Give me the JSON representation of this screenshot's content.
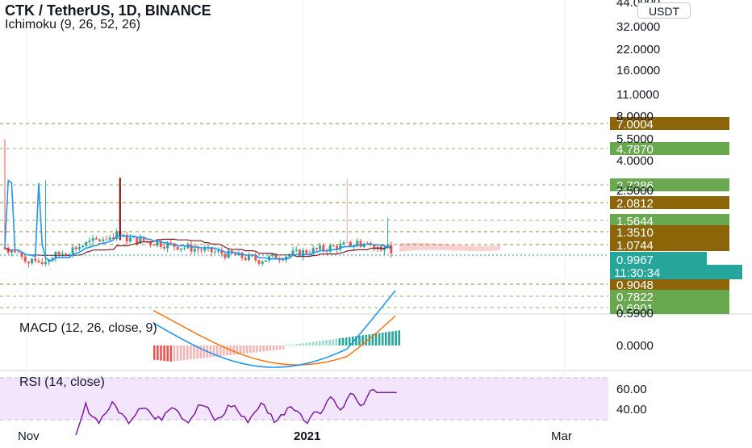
{
  "header": {
    "symbol_title": "CTK / TetherUS, 1D, BINANCE",
    "indicator_title": "Ichimoku (9, 26, 52, 26)",
    "currency_button": "USDT"
  },
  "panes": {
    "macd_title": "MACD (12, 26, close, 9)",
    "rsi_title": "RSI (14, close)"
  },
  "colors": {
    "up": "#26a69a",
    "down": "#ef5350",
    "conversion": "#2196f3",
    "base": "#801922",
    "cloud": "#f7c6c6",
    "macd": "#2196f3",
    "signal": "#ff6d00",
    "rsi": "#7b1fa2",
    "rsi_band": "#f3e5fb",
    "level_brown": "#8b6508",
    "level_green": "#6aa84f",
    "current_price": "#26a69a",
    "current_time": "#26a69a"
  },
  "chart_data": [
    {
      "type": "candlestick",
      "pane": "price",
      "y_scale": "log",
      "y_ticks": [
        "44.0000",
        "32.0000",
        "22.0000",
        "16.0000",
        "11.0000",
        "8.0000",
        "5.5000",
        "4.0000",
        "2.5000",
        "0.5900"
      ],
      "price_levels": [
        {
          "label": "7.0004",
          "color": "brown"
        },
        {
          "label": "4.7870",
          "color": "green"
        },
        {
          "label": "2.7286",
          "color": "green"
        },
        {
          "label": "2.0812",
          "color": "brown"
        },
        {
          "label": "1.5644",
          "color": "green"
        },
        {
          "label": "1.3510",
          "color": "brown"
        },
        {
          "label": "1.0744",
          "color": "brown"
        },
        {
          "label": "0.9048",
          "color": "brown"
        },
        {
          "label": "0.7822",
          "color": "green"
        },
        {
          "label": "0.6901",
          "color": "green"
        }
      ],
      "current_price": "0.9967",
      "countdown": "11:30:34",
      "x_ticks": [
        "Nov",
        "2021",
        "Mar"
      ]
    },
    {
      "type": "line",
      "pane": "macd",
      "y_ticks": [
        "0.0000"
      ],
      "series": [
        {
          "name": "MACD"
        },
        {
          "name": "Signal"
        }
      ]
    },
    {
      "type": "line",
      "pane": "rsi",
      "y_ticks": [
        "60.00",
        "40.00"
      ]
    }
  ]
}
